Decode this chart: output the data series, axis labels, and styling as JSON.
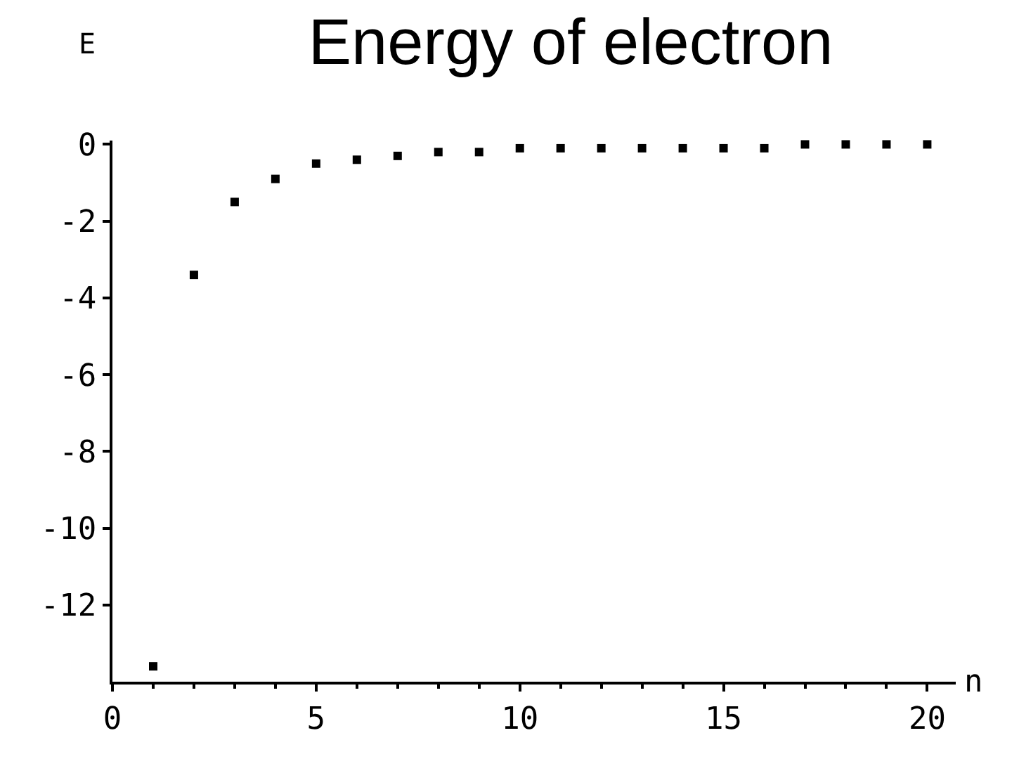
{
  "chart_data": {
    "type": "scatter",
    "title": "Energy of electron",
    "xlabel": "n",
    "ylabel": "E",
    "x": [
      1,
      2,
      3,
      4,
      5,
      6,
      7,
      8,
      9,
      10,
      11,
      12,
      13,
      14,
      15,
      16,
      17,
      18,
      19,
      20
    ],
    "series": [
      {
        "color": "#000000",
        "values": [
          -13.6,
          -3.4,
          -1.5,
          -0.9,
          -0.5,
          -0.4,
          -0.3,
          -0.2,
          -0.2,
          -0.1,
          -0.1,
          -0.1,
          -0.1,
          -0.1,
          -0.1,
          -0.1,
          0,
          0,
          0,
          0
        ]
      }
    ],
    "xlim": [
      0,
      20.7
    ],
    "ylim": [
      -14,
      0.1
    ],
    "xticks": [
      0,
      5,
      10,
      15,
      20
    ],
    "yticks": [
      0,
      -2,
      -4,
      -6,
      -8,
      -10,
      -12
    ],
    "marker": "square",
    "legend": false
  }
}
